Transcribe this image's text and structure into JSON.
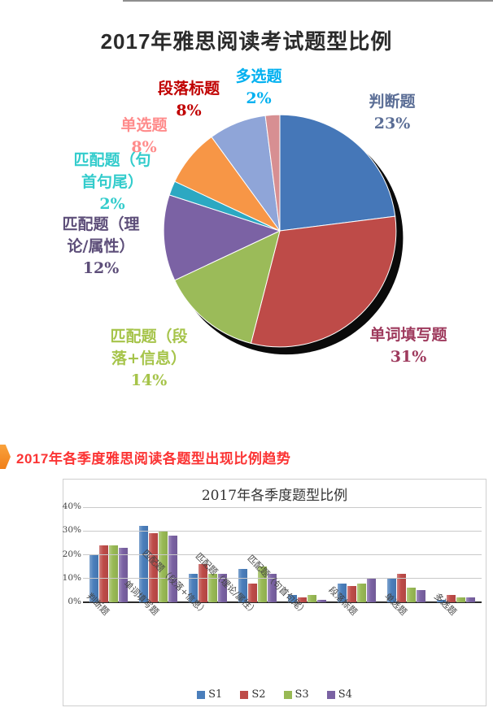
{
  "page": {
    "title": "2017年雅思阅读考试题型比例",
    "section2_heading": "2017年各季度雅思阅读各题型出现比例趋势"
  },
  "colors": {
    "heading_red": "#fb3434",
    "heading_marker_orange": "#f07f1a",
    "pie_shadow": "#0a0a0a"
  },
  "chart_data": [
    {
      "type": "pie",
      "title": "2017年雅思阅读考试题型比例",
      "legend_position": "none",
      "slices": [
        {
          "label": "判断题",
          "value": 23,
          "color": "#4577B8",
          "label_color": "#5B6E96"
        },
        {
          "label": "单词填写题",
          "value": 31,
          "color": "#BE4B48",
          "label_color": "#9E3A5D"
        },
        {
          "label": "匹配题（段落+信息）",
          "value": 14,
          "color": "#9BBB59",
          "label_color": "#A6C44A"
        },
        {
          "label": "匹配题（理论/属性）",
          "value": 12,
          "color": "#7B62A4",
          "label_color": "#5D4E79"
        },
        {
          "label": "匹配题（句首句尾）",
          "value": 2,
          "color": "#2CA8C2",
          "label_color": "#33CCCC"
        },
        {
          "label": "单选题",
          "value": 8,
          "color": "#F79646",
          "label_color": "#FF8B8B"
        },
        {
          "label": "段落标题",
          "value": 8,
          "color": "#8FA5D8",
          "label_color": "#C00000"
        },
        {
          "label": "多选题",
          "value": 2,
          "color": "#D78F92",
          "label_color": "#00B0F0"
        }
      ]
    },
    {
      "type": "bar",
      "title": "2017年各季度题型比例",
      "categories": [
        "判断题",
        "单词填写题",
        "匹配题（段落+信息）",
        "匹配题（理论/属性）",
        "匹配题（句首句尾）",
        "段落标题",
        "单选题",
        "多选题"
      ],
      "series": [
        {
          "name": "S1",
          "color": "#4A7EBB",
          "values": [
            20,
            32,
            12,
            14,
            3,
            8,
            10,
            1
          ]
        },
        {
          "name": "S2",
          "color": "#BE4B48",
          "values": [
            24,
            29,
            16,
            8,
            2,
            7,
            12,
            3
          ]
        },
        {
          "name": "S3",
          "color": "#98B954",
          "values": [
            24,
            30,
            12,
            15,
            3,
            8,
            6,
            2
          ]
        },
        {
          "name": "S4",
          "color": "#7A62A3",
          "values": [
            23,
            28,
            12,
            12,
            1,
            10,
            5,
            2
          ]
        }
      ],
      "ylim": [
        0,
        40
      ],
      "yticks": [
        "0%",
        "10%",
        "20%",
        "30%",
        "40%"
      ],
      "grid": true,
      "legend_position": "bottom"
    }
  ]
}
